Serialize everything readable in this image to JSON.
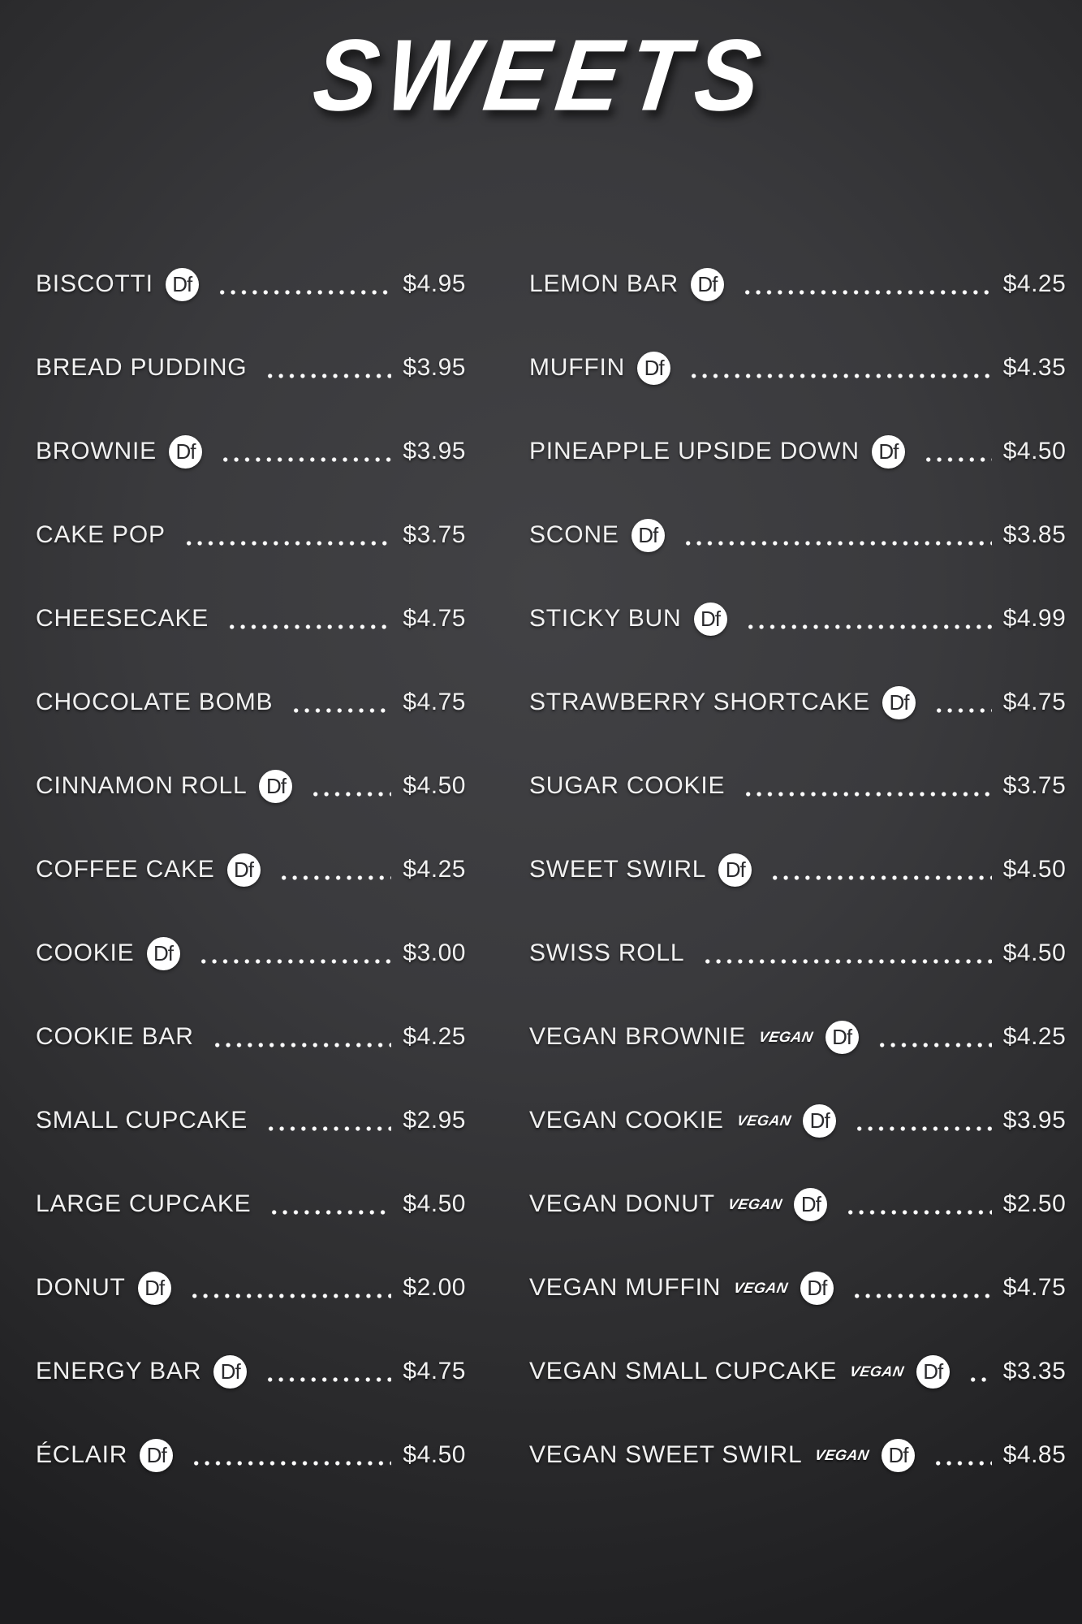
{
  "title": "SWEETS",
  "badges": {
    "df_label": "Df",
    "vegan_label": "VEGAN"
  },
  "colors": {
    "background_center": "#424245",
    "background_edge": "#1d1d1f",
    "text": "#f1f1f1",
    "badge_background": "#ffffff",
    "badge_text": "#2a2a2d",
    "dot_leader": "#ffffff"
  },
  "columns": {
    "left": [
      {
        "name": "BISCOTTI",
        "df": true,
        "vegan": false,
        "price": "$4.95"
      },
      {
        "name": "BREAD PUDDING",
        "df": false,
        "vegan": false,
        "price": "$3.95"
      },
      {
        "name": "BROWNIE",
        "df": true,
        "vegan": false,
        "price": "$3.95"
      },
      {
        "name": "CAKE POP",
        "df": false,
        "vegan": false,
        "price": "$3.75"
      },
      {
        "name": "CHEESECAKE",
        "df": false,
        "vegan": false,
        "price": "$4.75"
      },
      {
        "name": "CHOCOLATE BOMB",
        "df": false,
        "vegan": false,
        "price": "$4.75"
      },
      {
        "name": "CINNAMON ROLL",
        "df": true,
        "vegan": false,
        "price": "$4.50"
      },
      {
        "name": "COFFEE CAKE",
        "df": true,
        "vegan": false,
        "price": "$4.25"
      },
      {
        "name": "COOKIE",
        "df": true,
        "vegan": false,
        "price": "$3.00"
      },
      {
        "name": "COOKIE BAR",
        "df": false,
        "vegan": false,
        "price": "$4.25"
      },
      {
        "name": "SMALL CUPCAKE",
        "df": false,
        "vegan": false,
        "price": "$2.95"
      },
      {
        "name": "LARGE CUPCAKE",
        "df": false,
        "vegan": false,
        "price": "$4.50"
      },
      {
        "name": "DONUT",
        "df": true,
        "vegan": false,
        "price": "$2.00"
      },
      {
        "name": "ENERGY BAR",
        "df": true,
        "vegan": false,
        "price": "$4.75"
      },
      {
        "name": "ÉCLAIR",
        "df": true,
        "vegan": false,
        "price": "$4.50"
      }
    ],
    "right": [
      {
        "name": "LEMON BAR",
        "df": true,
        "vegan": false,
        "price": "$4.25"
      },
      {
        "name": "MUFFIN",
        "df": true,
        "vegan": false,
        "price": "$4.35"
      },
      {
        "name": "PINEAPPLE UPSIDE DOWN",
        "df": true,
        "vegan": false,
        "price": "$4.50"
      },
      {
        "name": "SCONE",
        "df": true,
        "vegan": false,
        "price": "$3.85"
      },
      {
        "name": "STICKY BUN",
        "df": true,
        "vegan": false,
        "price": "$4.99"
      },
      {
        "name": "STRAWBERRY SHORTCAKE",
        "df": true,
        "vegan": false,
        "price": "$4.75"
      },
      {
        "name": "SUGAR COOKIE",
        "df": false,
        "vegan": false,
        "price": "$3.75"
      },
      {
        "name": "SWEET SWIRL",
        "df": true,
        "vegan": false,
        "price": "$4.50"
      },
      {
        "name": "SWISS ROLL",
        "df": false,
        "vegan": false,
        "price": "$4.50"
      },
      {
        "name": "VEGAN BROWNIE",
        "df": true,
        "vegan": true,
        "price": "$4.25"
      },
      {
        "name": "VEGAN COOKIE",
        "df": true,
        "vegan": true,
        "price": "$3.95"
      },
      {
        "name": "VEGAN DONUT",
        "df": true,
        "vegan": true,
        "price": "$2.50"
      },
      {
        "name": "VEGAN MUFFIN",
        "df": true,
        "vegan": true,
        "price": "$4.75"
      },
      {
        "name": "VEGAN SMALL CUPCAKE",
        "df": true,
        "vegan": true,
        "price": "$3.35"
      },
      {
        "name": "VEGAN SWEET SWIRL",
        "df": true,
        "vegan": true,
        "price": "$4.85"
      }
    ]
  }
}
